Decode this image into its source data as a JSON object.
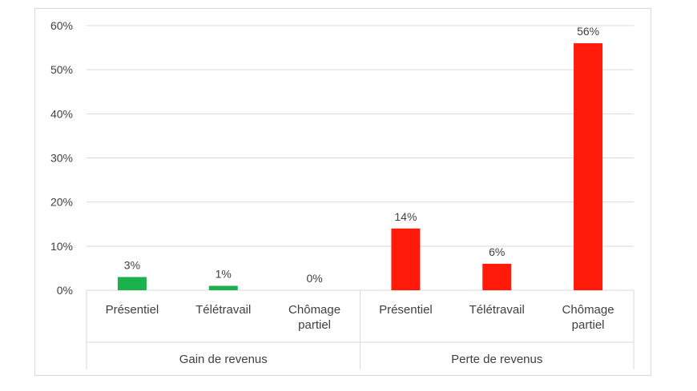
{
  "chart_data": {
    "type": "bar",
    "groups": [
      {
        "label": "Gain de revenus",
        "color": "#1bb14c",
        "categories": [
          "Présentiel",
          "Télétravail",
          "Chômage partiel"
        ],
        "values": [
          3,
          1,
          0
        ],
        "data_labels": [
          "3%",
          "1%",
          "0%"
        ]
      },
      {
        "label": "Perte de revenus",
        "color": "#ff1a0a",
        "categories": [
          "Présentiel",
          "Télétravail",
          "Chômage partiel"
        ],
        "values": [
          14,
          6,
          56
        ],
        "data_labels": [
          "14%",
          "6%",
          "56%"
        ]
      }
    ],
    "y_ticks": [
      "0%",
      "10%",
      "20%",
      "30%",
      "40%",
      "50%",
      "60%"
    ],
    "ylim": [
      0,
      60
    ],
    "grid": true,
    "legend": "none",
    "title": "",
    "xlabel": "",
    "ylabel": ""
  }
}
